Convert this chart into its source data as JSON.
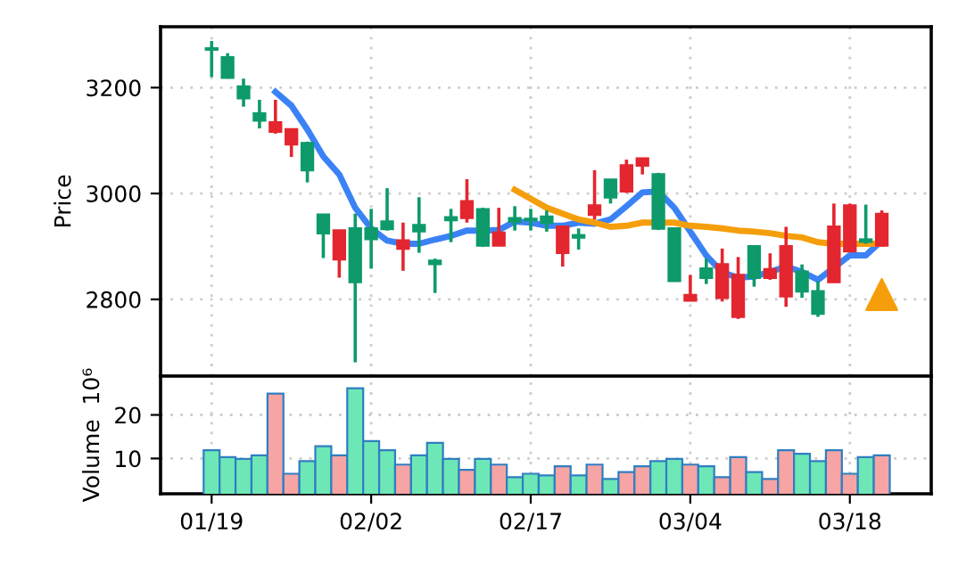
{
  "chart_data": [
    {
      "type": "candlestick",
      "ylabel": "Price",
      "categories": [
        null,
        null,
        null,
        null,
        null,
        null,
        null,
        null,
        null,
        null,
        null,
        null,
        null,
        null,
        null,
        null,
        null,
        null,
        null,
        null,
        null,
        null,
        null,
        null,
        null,
        null,
        null,
        null,
        null,
        null,
        null,
        null,
        null,
        null,
        null,
        null,
        null,
        null,
        null,
        null,
        null,
        null,
        null
      ],
      "ohlc": [
        [
          3274,
          3288,
          3220,
          3272
        ],
        [
          3257,
          3265,
          3217,
          3219
        ],
        [
          3202,
          3217,
          3164,
          3180
        ],
        [
          3151,
          3177,
          3123,
          3138
        ],
        [
          3117,
          3177,
          3113,
          3134
        ],
        [
          3093,
          3121,
          3069,
          3121
        ],
        [
          3095,
          3098,
          3021,
          3044
        ],
        [
          2960,
          2960,
          2878,
          2925
        ],
        [
          2876,
          2930,
          2841,
          2930
        ],
        [
          2934,
          2962,
          2681,
          2833
        ],
        [
          2934,
          2971,
          2858,
          2914
        ],
        [
          2947,
          3010,
          2930,
          2933
        ],
        [
          2896,
          2945,
          2854,
          2911
        ],
        [
          2940,
          2993,
          2888,
          2929
        ],
        [
          2873,
          2877,
          2812,
          2867
        ],
        [
          2955,
          2971,
          2908,
          2950
        ],
        [
          2954,
          3027,
          2945,
          2985
        ],
        [
          2970,
          2973,
          2899,
          2902
        ],
        [
          2902,
          2973,
          2902,
          2926
        ],
        [
          2953,
          2976,
          2930,
          2947
        ],
        [
          2952,
          2971,
          2930,
          2950
        ],
        [
          2956,
          2968,
          2928,
          2945
        ],
        [
          2888,
          2937,
          2862,
          2937
        ],
        [
          2921,
          2934,
          2894,
          2917
        ],
        [
          2960,
          3044,
          2951,
          2977
        ],
        [
          3026,
          3026,
          2981,
          2993
        ],
        [
          3004,
          3064,
          3001,
          3053
        ],
        [
          3053,
          3066,
          3036,
          3066
        ],
        [
          3036,
          3039,
          2931,
          2934
        ],
        [
          2934,
          2934,
          2835,
          2835
        ],
        [
          2798,
          2846,
          2798,
          2808
        ],
        [
          2858,
          2877,
          2829,
          2841
        ],
        [
          2803,
          2896,
          2796,
          2866
        ],
        [
          2767,
          2880,
          2763,
          2846
        ],
        [
          2900,
          2900,
          2824,
          2841
        ],
        [
          2841,
          2887,
          2837,
          2857
        ],
        [
          2806,
          2937,
          2786,
          2900
        ],
        [
          2852,
          2866,
          2803,
          2815
        ],
        [
          2815,
          2834,
          2767,
          2773
        ],
        [
          2833,
          2981,
          2833,
          2937
        ],
        [
          2891,
          2981,
          2891,
          2977
        ],
        [
          2913,
          2979,
          2905,
          2909
        ],
        [
          2902,
          2968,
          2902,
          2961
        ]
      ],
      "colors": [
        "#0e9a6a",
        "#0e9a6a",
        "#0e9a6a",
        "#0e9a6a",
        "#e3262f",
        "#e3262f",
        "#0e9a6a",
        "#0e9a6a",
        "#e3262f",
        "#0e9a6a",
        "#0e9a6a",
        "#0e9a6a",
        "#e3262f",
        "#0e9a6a",
        "#0e9a6a",
        "#0e9a6a",
        "#e3262f",
        "#0e9a6a",
        "#e3262f",
        "#0e9a6a",
        "#0e9a6a",
        "#0e9a6a",
        "#e3262f",
        "#0e9a6a",
        "#e3262f",
        "#0e9a6a",
        "#e3262f",
        "#e3262f",
        "#0e9a6a",
        "#0e9a6a",
        "#e3262f",
        "#0e9a6a",
        "#e3262f",
        "#e3262f",
        "#0e9a6a",
        "#e3262f",
        "#e3262f",
        "#0e9a6a",
        "#0e9a6a",
        "#e3262f",
        "#e3262f",
        "#0e9a6a",
        "#e3262f"
      ],
      "series": [
        {
          "type": "line",
          "color": "#3b82f6",
          "values": [
            null,
            null,
            null,
            null,
            3192,
            3166,
            3121,
            3070,
            3036,
            2973,
            2934,
            2911,
            2905,
            2905,
            2913,
            2920,
            2930,
            2930,
            2931,
            2947,
            2945,
            2939,
            2939,
            2945,
            2943,
            2951,
            2976,
            3002,
            3004,
            2973,
            2928,
            2883,
            2851,
            2841,
            2843,
            2852,
            2862,
            2852,
            2837,
            2860,
            2883,
            2883,
            2911
          ]
        },
        {
          "type": "line",
          "color": "#f59e0b",
          "values": [
            null,
            null,
            null,
            null,
            null,
            null,
            null,
            null,
            null,
            null,
            null,
            null,
            null,
            null,
            null,
            null,
            null,
            null,
            null,
            3007,
            2990,
            2973,
            2962,
            2951,
            2945,
            2937,
            2939,
            2945,
            2945,
            2945,
            2939,
            2937,
            2934,
            2930,
            2928,
            2925,
            2920,
            2917,
            2908,
            2905,
            2905,
            2905,
            2905
          ]
        },
        {
          "type": "scatter",
          "marker": "triangle",
          "color": "#f59e0b",
          "values": [
            null,
            null,
            null,
            null,
            null,
            null,
            null,
            null,
            null,
            null,
            null,
            null,
            null,
            null,
            null,
            null,
            null,
            null,
            null,
            null,
            null,
            null,
            null,
            null,
            null,
            null,
            null,
            null,
            null,
            null,
            null,
            null,
            null,
            null,
            null,
            null,
            null,
            null,
            null,
            null,
            null,
            null,
            2809
          ]
        }
      ],
      "ylim": [
        2655,
        3315
      ],
      "yticks": [
        2800,
        3000,
        3200
      ],
      "grid": true,
      "tick_labels": "y"
    },
    {
      "type": "bar",
      "ylabel": "Volume  10⁶",
      "categories": [
        "01/19",
        null,
        null,
        null,
        null,
        null,
        null,
        null,
        null,
        null,
        "02/02",
        null,
        null,
        null,
        null,
        null,
        null,
        null,
        null,
        null,
        "02/17",
        null,
        null,
        null,
        null,
        null,
        null,
        null,
        null,
        null,
        "03/04",
        null,
        null,
        null,
        null,
        null,
        null,
        null,
        null,
        null,
        "03/18",
        null,
        null
      ],
      "values": [
        11.9,
        10.3,
        9.9,
        10.7,
        24.9,
        6.5,
        9.4,
        12.8,
        10.7,
        26.1,
        14.0,
        11.9,
        8.6,
        10.7,
        13.6,
        9.9,
        7.4,
        9.9,
        8.6,
        5.7,
        6.5,
        6.1,
        8.2,
        6.1,
        8.6,
        5.3,
        6.9,
        8.2,
        9.4,
        9.9,
        8.6,
        8.2,
        5.7,
        10.3,
        6.9,
        5.3,
        11.9,
        11.1,
        9.4,
        11.9,
        6.5,
        10.3,
        10.7
      ],
      "colors": [
        "#6ee7b7",
        "#6ee7b7",
        "#6ee7b7",
        "#6ee7b7",
        "#f7a4a4",
        "#f7a4a4",
        "#6ee7b7",
        "#6ee7b7",
        "#f7a4a4",
        "#6ee7b7",
        "#6ee7b7",
        "#6ee7b7",
        "#f7a4a4",
        "#6ee7b7",
        "#6ee7b7",
        "#6ee7b7",
        "#f7a4a4",
        "#6ee7b7",
        "#f7a4a4",
        "#6ee7b7",
        "#6ee7b7",
        "#6ee7b7",
        "#f7a4a4",
        "#6ee7b7",
        "#f7a4a4",
        "#6ee7b7",
        "#f7a4a4",
        "#f7a4a4",
        "#6ee7b7",
        "#6ee7b7",
        "#f7a4a4",
        "#6ee7b7",
        "#f7a4a4",
        "#f7a4a4",
        "#6ee7b7",
        "#f7a4a4",
        "#f7a4a4",
        "#6ee7b7",
        "#6ee7b7",
        "#f7a4a4",
        "#f7a4a4",
        "#6ee7b7",
        "#f7a4a4"
      ],
      "ylim": [
        1.9,
        28.9
      ],
      "yticks": [
        10,
        20
      ],
      "grid": true
    }
  ]
}
